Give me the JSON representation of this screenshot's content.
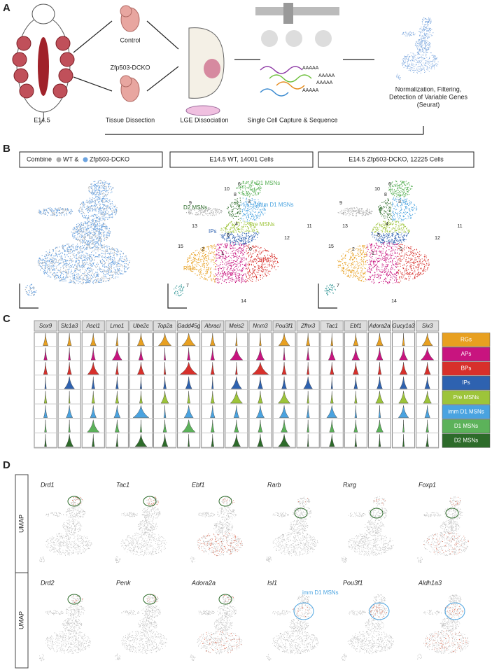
{
  "panel_a": {
    "label": "A",
    "control": "Control",
    "mutant": "Zfp503-DCKO",
    "age": "E14.5",
    "steps": [
      "Tissue Dissection",
      "LGE Dissociation",
      "Single Cell Capture & Sequence"
    ],
    "polya": [
      "AAAAA",
      "AAAAA",
      "AAAAA",
      "AAAAA"
    ],
    "analysis": [
      "Normalization, Filtering,",
      "Detection of Variable Genes",
      "(Seurat)"
    ]
  },
  "panel_b": {
    "label": "B",
    "combine": [
      "Combine",
      "WT &",
      "Zfp503-DCKO"
    ],
    "wt_title": "E14.5 WT, 14001 Cells",
    "ko_title": "E14.5 Zfp503-DCKO, 12225 Cells",
    "cluster_names": [
      "D1 MSNs",
      "imm D1 MSNs",
      "Pre MSNs",
      "D2 MSNs",
      "IPs",
      "RGs",
      "APs",
      "BPs"
    ],
    "cluster_numbers": [
      "0",
      "1",
      "2",
      "3",
      "4",
      "5",
      "6",
      "7",
      "8",
      "9",
      "10",
      "11",
      "12",
      "13",
      "14",
      "15"
    ]
  },
  "panel_c": {
    "label": "C",
    "genes": [
      "Sox9",
      "Slc1a3",
      "Ascl1",
      "Lmo1",
      "Ube2c",
      "Top2a",
      "Gadd45g",
      "Abracl",
      "Meis2",
      "Nrxn3",
      "Pou3f1",
      "Zfhx3",
      "Tac1",
      "Ebf1",
      "Adora2a",
      "Gucy1a3",
      "Six3"
    ],
    "cell_types": [
      "RGs",
      "APs",
      "BPs",
      "IPs",
      "Pre MSNs",
      "imm D1 MSNs",
      "D1 MSNs",
      "D2 MSNs"
    ],
    "colors": [
      "#e8a020",
      "#c8147f",
      "#d7302b",
      "#2e62b0",
      "#9dc43a",
      "#4aa3e0",
      "#5cb25a",
      "#2d6b2a"
    ]
  },
  "panel_d": {
    "label": "D",
    "axis_label": "UMAP",
    "genes": [
      [
        "Drd1",
        "Tac1",
        "Ebf1",
        "Rarb",
        "Rxrg",
        "Foxp1"
      ],
      [
        "Drd2",
        "Penk",
        "Adora2a",
        "Isl1",
        "Pou3f1",
        "Aldh1a3"
      ]
    ],
    "annotation": "imm D1 MSNs"
  }
}
